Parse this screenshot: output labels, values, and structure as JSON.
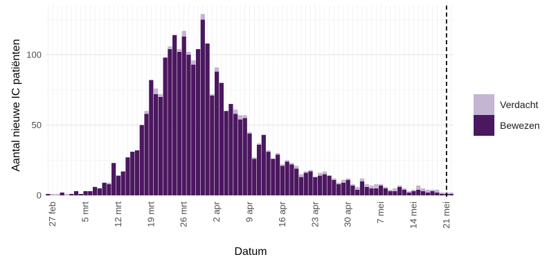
{
  "chart_data": {
    "type": "bar",
    "stacked": true,
    "xlabel": "Datum",
    "ylabel": "Aantal nieuwe IC patiënten",
    "ylim": [
      0,
      135
    ],
    "yticks": [
      0,
      50,
      100
    ],
    "grid": true,
    "legend_position": "right",
    "x_tick_labels": [
      "27 feb",
      "5 mrt",
      "12 mrt",
      "19 mrt",
      "26 mrt",
      "2 apr",
      "9 apr",
      "16 apr",
      "23 apr",
      "30 apr",
      "7 mei",
      "14 mei",
      "21 mei"
    ],
    "vline": {
      "label": "21 mei",
      "style": "dashed"
    },
    "x": [
      "26 feb",
      "27 feb",
      "28 feb",
      "29 feb",
      "1 mrt",
      "2 mrt",
      "3 mrt",
      "4 mrt",
      "5 mrt",
      "6 mrt",
      "7 mrt",
      "8 mrt",
      "9 mrt",
      "10 mrt",
      "11 mrt",
      "12 mrt",
      "13 mrt",
      "14 mrt",
      "15 mrt",
      "16 mrt",
      "17 mrt",
      "18 mrt",
      "19 mrt",
      "20 mrt",
      "21 mrt",
      "22 mrt",
      "23 mrt",
      "24 mrt",
      "25 mrt",
      "26 mrt",
      "27 mrt",
      "28 mrt",
      "29 mrt",
      "30 mrt",
      "31 mrt",
      "1 apr",
      "2 apr",
      "3 apr",
      "4 apr",
      "5 apr",
      "6 apr",
      "7 apr",
      "8 apr",
      "9 apr",
      "10 apr",
      "11 apr",
      "12 apr",
      "13 apr",
      "14 apr",
      "15 apr",
      "16 apr",
      "17 apr",
      "18 apr",
      "19 apr",
      "20 apr",
      "21 apr",
      "22 apr",
      "23 apr",
      "24 apr",
      "25 apr",
      "26 apr",
      "27 apr",
      "28 apr",
      "29 apr",
      "30 apr",
      "1 mei",
      "2 mei",
      "3 mei",
      "4 mei",
      "5 mei",
      "6 mei",
      "7 mei",
      "8 mei",
      "9 mei",
      "10 mei",
      "11 mei",
      "12 mei",
      "13 mei",
      "14 mei",
      "15 mei",
      "16 mei",
      "17 mei",
      "18 mei",
      "19 mei",
      "20 mei",
      "21 mei",
      "22 mei"
    ],
    "series": [
      {
        "name": "Bewezen",
        "color": "#4b175f",
        "values": [
          1,
          0,
          0,
          2,
          0,
          1,
          3,
          1,
          3,
          3,
          6,
          5,
          9,
          8,
          23,
          14,
          17,
          27,
          31,
          32,
          50,
          58,
          82,
          72,
          70,
          98,
          104,
          114,
          102,
          113,
          100,
          93,
          104,
          125,
          108,
          71,
          88,
          80,
          60,
          65,
          58,
          54,
          55,
          44,
          26,
          36,
          43,
          31,
          26,
          29,
          21,
          24,
          22,
          19,
          13,
          16,
          17,
          13,
          14,
          15,
          14,
          11,
          8,
          9,
          11,
          7,
          4,
          10,
          6,
          5,
          5,
          7,
          5,
          3,
          3,
          6,
          4,
          2,
          3,
          4,
          3,
          2,
          3,
          2,
          1,
          1,
          1
        ]
      },
      {
        "name": "Verdacht",
        "color": "#c4b5d3",
        "values": [
          0,
          1,
          1,
          0,
          1,
          0,
          0,
          0,
          0,
          0,
          0,
          0,
          0,
          1,
          0,
          0,
          0,
          0,
          0,
          0,
          0,
          2,
          0,
          4,
          2,
          0,
          2,
          0,
          2,
          4,
          2,
          3,
          0,
          4,
          0,
          1,
          3,
          0,
          0,
          0,
          3,
          3,
          2,
          1,
          1,
          1,
          0,
          1,
          0,
          1,
          1,
          1,
          1,
          2,
          2,
          1,
          1,
          0,
          2,
          2,
          0,
          1,
          1,
          2,
          1,
          1,
          2,
          2,
          2,
          2,
          3,
          1,
          1,
          1,
          2,
          1,
          1,
          1,
          1,
          3,
          2,
          2,
          1,
          2,
          1,
          1,
          1
        ]
      }
    ]
  }
}
